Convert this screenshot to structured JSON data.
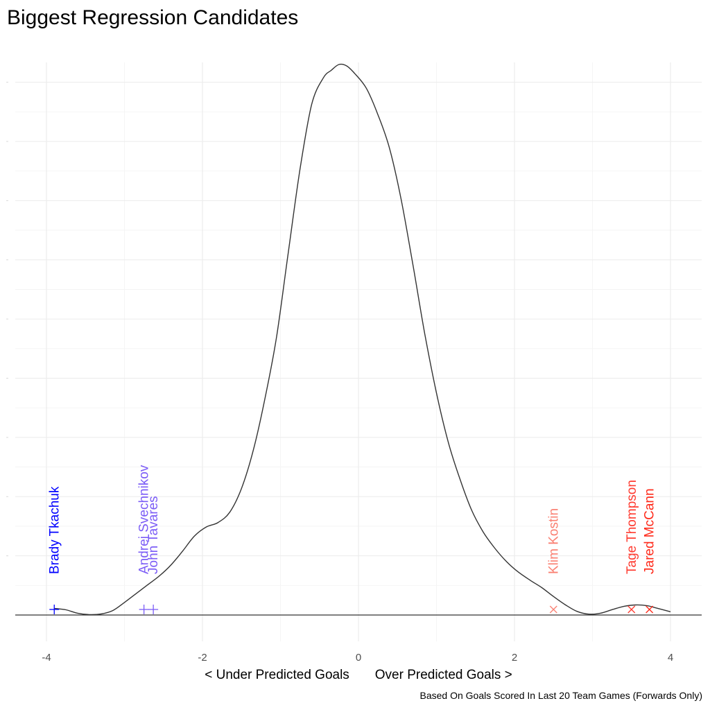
{
  "chart_data": {
    "type": "density",
    "title": "Biggest Regression Candidates",
    "xlabel": "< Under Predicted Goals       Over Predicted Goals >",
    "caption": "Based On Goals Scored In Last 20 Team Games (Forwards Only)",
    "xlim": [
      -4.2,
      4.2
    ],
    "ylim": [
      0,
      0.37
    ],
    "x_ticks": [
      -4,
      -2,
      0,
      2,
      4
    ],
    "x_tick_labels": [
      "-4",
      "-2",
      "0",
      "2",
      "4"
    ],
    "density_curve": {
      "x": [
        -3.9,
        -3.75,
        -3.6,
        -3.45,
        -3.3,
        -3.15,
        -3.0,
        -2.85,
        -2.7,
        -2.55,
        -2.4,
        -2.25,
        -2.1,
        -1.95,
        -1.8,
        -1.65,
        -1.5,
        -1.35,
        -1.2,
        -1.05,
        -0.9,
        -0.75,
        -0.6,
        -0.45,
        -0.35,
        -0.25,
        -0.15,
        -0.05,
        0.1,
        0.25,
        0.4,
        0.55,
        0.7,
        0.85,
        1.0,
        1.15,
        1.3,
        1.45,
        1.6,
        1.75,
        1.9,
        2.05,
        2.2,
        2.35,
        2.5,
        2.65,
        2.8,
        2.95,
        3.1,
        3.25,
        3.4,
        3.55,
        3.7,
        3.85,
        4.0
      ],
      "y": [
        0.0045,
        0.0035,
        0.0012,
        0.0003,
        0.0007,
        0.003,
        0.0085,
        0.0145,
        0.0205,
        0.0265,
        0.034,
        0.0435,
        0.0535,
        0.0595,
        0.0625,
        0.0695,
        0.0855,
        0.111,
        0.146,
        0.188,
        0.245,
        0.301,
        0.345,
        0.363,
        0.368,
        0.372,
        0.371,
        0.366,
        0.356,
        0.338,
        0.315,
        0.28,
        0.236,
        0.19,
        0.15,
        0.117,
        0.092,
        0.071,
        0.056,
        0.045,
        0.036,
        0.029,
        0.0235,
        0.0185,
        0.0125,
        0.007,
        0.0025,
        0.0006,
        0.0012,
        0.0036,
        0.0058,
        0.0068,
        0.0063,
        0.0043,
        0.0022
      ]
    },
    "players": [
      {
        "name": "Brady Tkachuk",
        "x": -3.9,
        "marker": "+",
        "color": "#0000ff"
      },
      {
        "name": "Andrei Svechnikov",
        "x": -2.75,
        "marker": "+",
        "color": "#7b5cf6"
      },
      {
        "name": "John Tavares",
        "x": -2.63,
        "marker": "+",
        "color": "#7b5cf6"
      },
      {
        "name": "Klim Kostin",
        "x": 2.5,
        "marker": "x",
        "color": "#fa8072"
      },
      {
        "name": "Tage Thompson",
        "x": 3.5,
        "marker": "x",
        "color": "#ff3b30"
      },
      {
        "name": "Jared McCann",
        "x": 3.73,
        "marker": "x",
        "color": "#ff2a1a"
      }
    ],
    "grid": true,
    "legend": "none"
  }
}
